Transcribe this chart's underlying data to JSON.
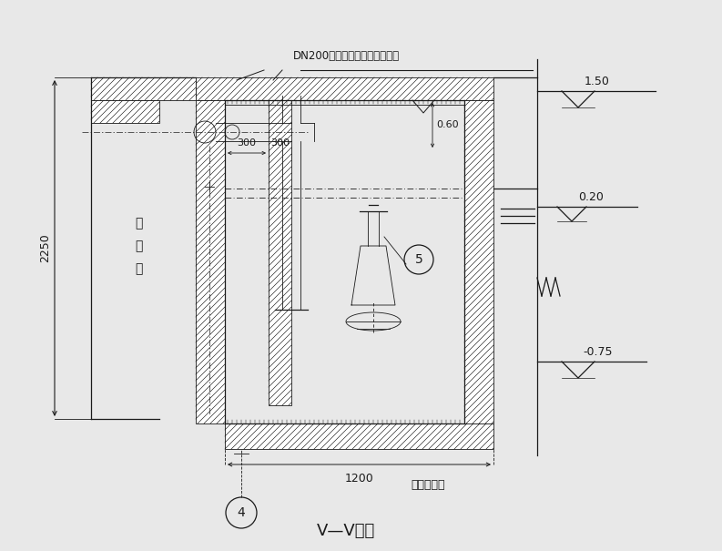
{
  "title": "V—V剖面",
  "bg_color": "#e8e8e8",
  "line_color": "#1a1a1a",
  "label_top": "DN200剩余污泥管道至污泥贮池",
  "label_left_chars": [
    "厌",
    "氧",
    "池"
  ],
  "label_bottom_right": "厌氧沉淤池",
  "dim_2250": "2250",
  "dim_300_left": "300",
  "dim_300_right": "300",
  "dim_060": "0.60",
  "dim_1200": "1200",
  "elev_150": "1.50",
  "elev_020": "0.20",
  "elev_075": "-0.75",
  "circle4_label": "4",
  "circle5_label": "5"
}
